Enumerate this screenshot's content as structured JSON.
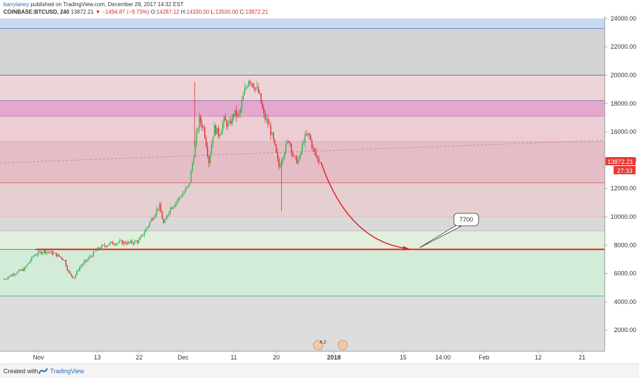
{
  "header": {
    "publisher": "barrylaney",
    "published_text": "published on TradingView.com, December 28, 2017 14:32 EST",
    "symbol": "COINBASE:BTCUSD, 240",
    "last": "13872.21",
    "change": "▼ −1494.87 (−9.73%)",
    "ohlc_o_label": "O:",
    "ohlc_o": "14287.12",
    "ohlc_h_label": "H:",
    "ohlc_h": "14330.00",
    "ohlc_l_label": "L:",
    "ohlc_l": "13500.00",
    "ohlc_c_label": "C:",
    "ohlc_c": "13872.21"
  },
  "price_badge": {
    "price": "13872.21",
    "countdown": "27:33"
  },
  "annotation": {
    "callout_text": "7700"
  },
  "footer": {
    "created_with": "Created with",
    "brand": "TradingView"
  },
  "indicator_badge": "4.2",
  "colors": {
    "bull": "#2fb24a",
    "bear": "#d42b2b",
    "arrow": "#e02020",
    "support_line": "#e02020",
    "badge_red": "#e53935"
  },
  "chart_data": {
    "type": "candlestick",
    "symbol": "COINBASE:BTCUSD",
    "timeframe": "240",
    "ylim": [
      0,
      24000
    ],
    "yticks": [
      "24000.00",
      "22000.00",
      "20000.00",
      "18000.00",
      "16000.00",
      "14000.00",
      "12000.00",
      "10000.00",
      "8000.00",
      "6000.00",
      "4000.00",
      "2000.00"
    ],
    "xticks": [
      "Nov",
      "13",
      "22",
      "Dec",
      "11",
      "20",
      "2018",
      "15",
      "14:00",
      "Feb",
      "12",
      "21"
    ],
    "bands": [
      {
        "from": 23300,
        "to": 24000,
        "color": "#c8d8ee"
      },
      {
        "from": 20000,
        "to": 23300,
        "color": "#d4d4d4"
      },
      {
        "from": 18200,
        "to": 20000,
        "color": "#efd4d7"
      },
      {
        "from": 17100,
        "to": 18200,
        "color": "#e4a8cf"
      },
      {
        "from": 15300,
        "to": 17100,
        "color": "#eccdd3"
      },
      {
        "from": 12400,
        "to": 15300,
        "color": "#e5bdc7"
      },
      {
        "from": 10000,
        "to": 12400,
        "color": "#e6cfd0"
      },
      {
        "from": 9000,
        "to": 10000,
        "color": "#d9d9d9"
      },
      {
        "from": 7700,
        "to": 9000,
        "color": "#e0f0dc"
      },
      {
        "from": 4400,
        "to": 7700,
        "color": "#d3ecd9"
      },
      {
        "from": 0,
        "to": 4400,
        "color": "#dddddd"
      }
    ],
    "levels": [
      23300,
      20000,
      18200,
      17100,
      15300,
      12400,
      10000,
      9000,
      7700,
      4400
    ],
    "support_level": 7700,
    "trendline": {
      "from": [
        0,
        13800
      ],
      "to": [
        1,
        15400
      ]
    },
    "ohlc_path": [
      [
        0,
        5600
      ],
      [
        4,
        6000
      ],
      [
        8,
        6300
      ],
      [
        12,
        7300
      ],
      [
        16,
        7600
      ],
      [
        20,
        7400
      ],
      [
        24,
        7000
      ],
      [
        26,
        6000
      ],
      [
        28,
        5700
      ],
      [
        30,
        6400
      ],
      [
        34,
        7100
      ],
      [
        38,
        7800
      ],
      [
        42,
        8100
      ],
      [
        46,
        8200
      ],
      [
        50,
        8150
      ],
      [
        54,
        8300
      ],
      [
        58,
        9500
      ],
      [
        62,
        10800
      ],
      [
        64,
        9400
      ],
      [
        66,
        10500
      ],
      [
        70,
        11300
      ],
      [
        74,
        12200
      ],
      [
        76,
        14500
      ],
      [
        78,
        16900
      ],
      [
        80,
        16200
      ],
      [
        82,
        13900
      ],
      [
        84,
        16300
      ],
      [
        86,
        15800
      ],
      [
        88,
        16800
      ],
      [
        90,
        16400
      ],
      [
        92,
        17300
      ],
      [
        94,
        17100
      ],
      [
        96,
        18700
      ],
      [
        98,
        19800
      ],
      [
        100,
        19300
      ],
      [
        102,
        18700
      ],
      [
        104,
        17100
      ],
      [
        106,
        16500
      ],
      [
        108,
        15200
      ],
      [
        110,
        13500
      ],
      [
        112,
        14600
      ],
      [
        114,
        15500
      ],
      [
        116,
        14100
      ],
      [
        118,
        13900
      ],
      [
        120,
        15500
      ],
      [
        122,
        15800
      ],
      [
        124,
        14600
      ],
      [
        126,
        13900
      ]
    ],
    "projection": {
      "from_price": 13872,
      "to_price": 7700
    }
  }
}
